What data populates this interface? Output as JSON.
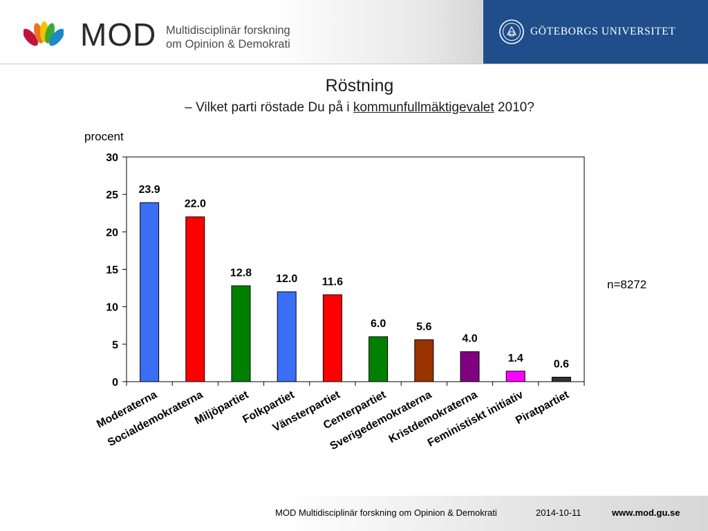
{
  "header": {
    "logo_text": "MOD",
    "logo_subtitle_line1": "Multidisciplinär forskning",
    "logo_subtitle_line2": "om Opinion & Demokrati",
    "university_name": "GÖTEBORGS UNIVERSITET",
    "band_color": "#1f4e8a"
  },
  "slide": {
    "title": "Röstning",
    "subtitle_prefix": "– Vilket parti röstade Du på i ",
    "subtitle_emphasis": "kommunfullmäktigevalet",
    "subtitle_suffix": " 2010?",
    "unit_label": "procent",
    "sample_size": "n=8272"
  },
  "chart_data": {
    "type": "bar",
    "categories": [
      "Moderaterna",
      "Socialdemokraterna",
      "Miljöpartiet",
      "Folkpartiet",
      "Vänsterpartiet",
      "Centerpartiet",
      "Sverigedemokraterna",
      "Kristdemokraterna",
      "Feministiskt initiativ",
      "Piratpartiet"
    ],
    "values": [
      23.9,
      22.0,
      12.8,
      12.0,
      11.6,
      6.0,
      5.6,
      4.0,
      1.4,
      0.6
    ],
    "value_labels": [
      "23.9",
      "22.0",
      "12.8",
      "12.0",
      "11.6",
      "6.0",
      "5.6",
      "4.0",
      "1.4",
      "0.6"
    ],
    "colors": [
      "#3a6ff5",
      "#ff0000",
      "#008000",
      "#3a6ff5",
      "#ff0000",
      "#008000",
      "#993300",
      "#800080",
      "#ff00ff",
      "#333333"
    ],
    "ylim": [
      0,
      30
    ],
    "yticks": [
      0,
      5,
      10,
      15,
      20,
      25,
      30
    ],
    "ylabel": "procent",
    "grid": false,
    "legend": "none"
  },
  "footer": {
    "org": "MOD Multidisciplinär forskning om Opinion & Demokrati",
    "date": "2014-10-11",
    "url": "www.mod.gu.se"
  }
}
